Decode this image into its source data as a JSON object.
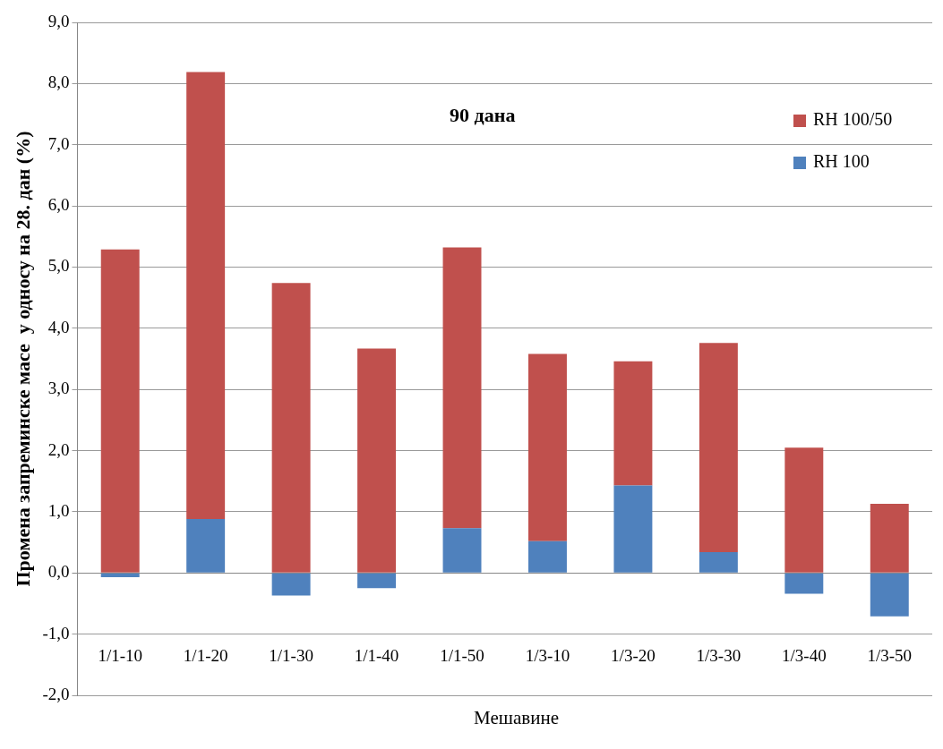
{
  "chart_data": {
    "type": "bar",
    "title": "90 дана",
    "xlabel": "Мешавине",
    "ylabel": "Промена запреминске масе  у односу на 28. дан (%)",
    "categories": [
      "1/1-10",
      "1/1-20",
      "1/1-30",
      "1/1-40",
      "1/1-50",
      "1/3-10",
      "1/3-20",
      "1/3-30",
      "1/3-40",
      "1/3-50"
    ],
    "stacked": true,
    "series": [
      {
        "name": "RH 100",
        "color": "#4f81bd",
        "values": [
          -0.07,
          0.88,
          -0.37,
          -0.25,
          0.73,
          0.52,
          1.43,
          0.34,
          -0.34,
          -0.71
        ]
      },
      {
        "name": "RH 100/50",
        "color": "#c0504d",
        "values": [
          5.29,
          7.31,
          4.74,
          3.67,
          4.59,
          3.06,
          2.03,
          3.42,
          2.05,
          1.13
        ]
      }
    ],
    "ylim": [
      -2,
      9
    ],
    "yticks": [
      {
        "value": -2,
        "label": "-2,0"
      },
      {
        "value": -1,
        "label": "-1,0"
      },
      {
        "value": 0,
        "label": "0,0"
      },
      {
        "value": 1,
        "label": "1,0"
      },
      {
        "value": 2,
        "label": "2,0"
      },
      {
        "value": 3,
        "label": "3,0"
      },
      {
        "value": 4,
        "label": "4,0"
      },
      {
        "value": 5,
        "label": "5,0"
      },
      {
        "value": 6,
        "label": "6,0"
      },
      {
        "value": 7,
        "label": "7,0"
      },
      {
        "value": 8,
        "label": "8,0"
      },
      {
        "value": 9,
        "label": "9,0"
      }
    ],
    "grid": "y",
    "legend": "top right"
  }
}
